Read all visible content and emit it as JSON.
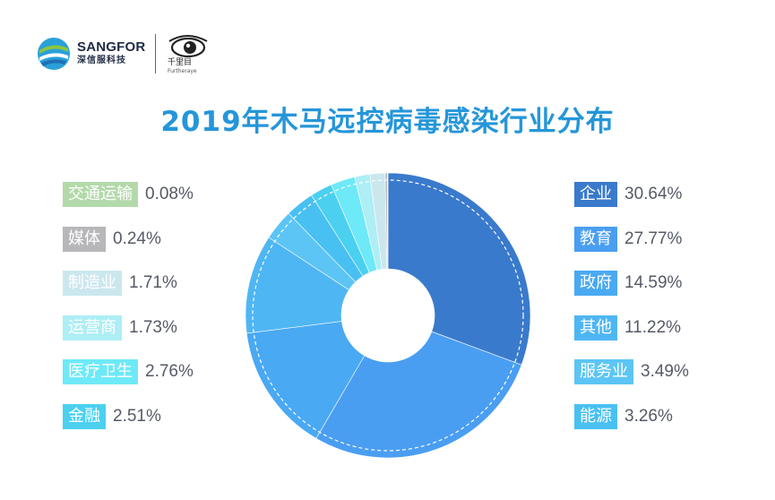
{
  "branding": {
    "sangfor_text": "SANGFOR",
    "sangfor_cn": "深信服科技",
    "qianliyan_cn": "千里目",
    "qianliyan_en": "Furtheraye"
  },
  "colors": {
    "title": "#2596d9",
    "inner_hole": "#ffffff"
  },
  "chart_data": {
    "type": "pie",
    "title": "2019年木马远控病毒感染行业分布",
    "slices": [
      {
        "label": "企业",
        "value": 30.64,
        "pct_label": "30.64%",
        "color": "#3a7acc"
      },
      {
        "label": "教育",
        "value": 27.77,
        "pct_label": "27.77%",
        "color": "#4a9ef2"
      },
      {
        "label": "政府",
        "value": 14.59,
        "pct_label": "14.59%",
        "color": "#4aa9f3"
      },
      {
        "label": "其他",
        "value": 11.22,
        "pct_label": "11.22%",
        "color": "#4fb6f4"
      },
      {
        "label": "服务业",
        "value": 3.49,
        "pct_label": "3.49%",
        "color": "#5cc5f5"
      },
      {
        "label": "能源",
        "value": 3.26,
        "pct_label": "3.26%",
        "color": "#49c0f2"
      },
      {
        "label": "金融",
        "value": 2.51,
        "pct_label": "2.51%",
        "color": "#4bd0f0"
      },
      {
        "label": "医疗卫生",
        "value": 2.76,
        "pct_label": "2.76%",
        "color": "#6ee9f7"
      },
      {
        "label": "运营商",
        "value": 1.73,
        "pct_label": "1.73%",
        "color": "#aeeef5"
      },
      {
        "label": "制造业",
        "value": 1.71,
        "pct_label": "1.71%",
        "color": "#cbe7ee"
      },
      {
        "label": "媒体",
        "value": 0.24,
        "pct_label": "0.24%",
        "color": "#b7b7ba"
      },
      {
        "label": "交通运输",
        "value": 0.08,
        "pct_label": "0.08%",
        "color": "#b3d9aa"
      }
    ],
    "legend_placement": "split-left-right",
    "inner_radius_ratio": 0.33
  }
}
